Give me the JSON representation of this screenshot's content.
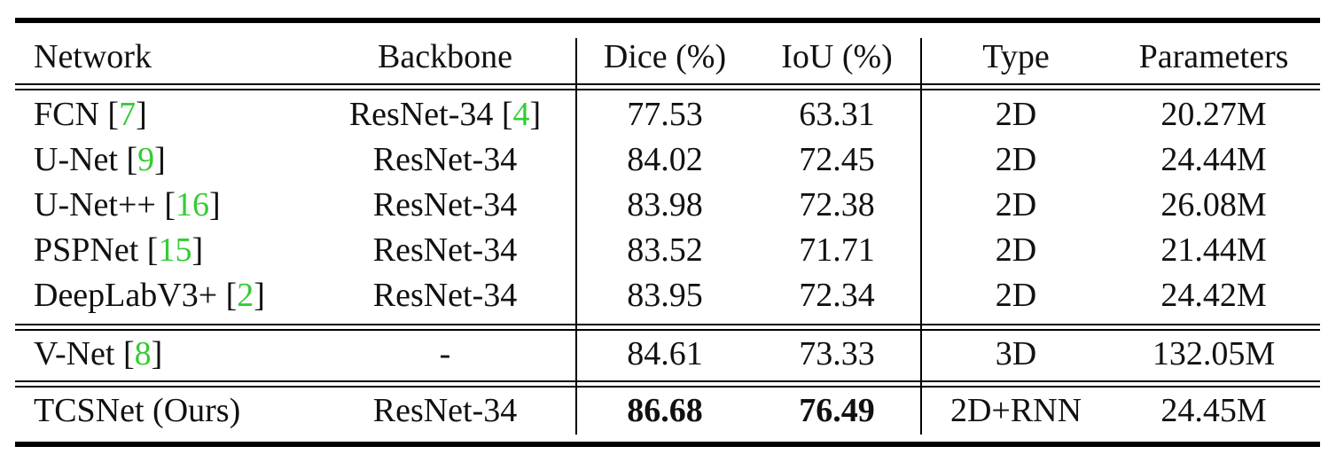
{
  "table": {
    "headers": [
      "Network",
      "Backbone",
      "Dice (%)",
      "IoU (%)",
      "Type",
      "Parameters"
    ],
    "rows": [
      {
        "network": "FCN",
        "network_cite": "7",
        "backbone": "ResNet-34",
        "backbone_cite": "4",
        "dice": "77.53",
        "iou": "63.31",
        "type": "2D",
        "params": "20.27M"
      },
      {
        "network": "U-Net",
        "network_cite": "9",
        "backbone": "ResNet-34",
        "backbone_cite": "",
        "dice": "84.02",
        "iou": "72.45",
        "type": "2D",
        "params": "24.44M"
      },
      {
        "network": "U-Net++",
        "network_cite": "16",
        "backbone": "ResNet-34",
        "backbone_cite": "",
        "dice": "83.98",
        "iou": "72.38",
        "type": "2D",
        "params": "26.08M"
      },
      {
        "network": "PSPNet",
        "network_cite": "15",
        "backbone": "ResNet-34",
        "backbone_cite": "",
        "dice": "83.52",
        "iou": "71.71",
        "type": "2D",
        "params": "21.44M"
      },
      {
        "network": "DeepLabV3+",
        "network_cite": "2",
        "backbone": "ResNet-34",
        "backbone_cite": "",
        "dice": "83.95",
        "iou": "72.34",
        "type": "2D",
        "params": "24.42M"
      },
      {
        "network": "V-Net",
        "network_cite": "8",
        "backbone": "-",
        "backbone_cite": "",
        "dice": "84.61",
        "iou": "73.33",
        "type": "3D",
        "params": "132.05M"
      },
      {
        "network": "TCSNet (Ours)",
        "network_cite": "",
        "backbone": "ResNet-34",
        "backbone_cite": "",
        "dice": "86.68",
        "iou": "76.49",
        "type": "2D+RNN",
        "params": "24.45M",
        "bold_metrics": true
      }
    ]
  }
}
